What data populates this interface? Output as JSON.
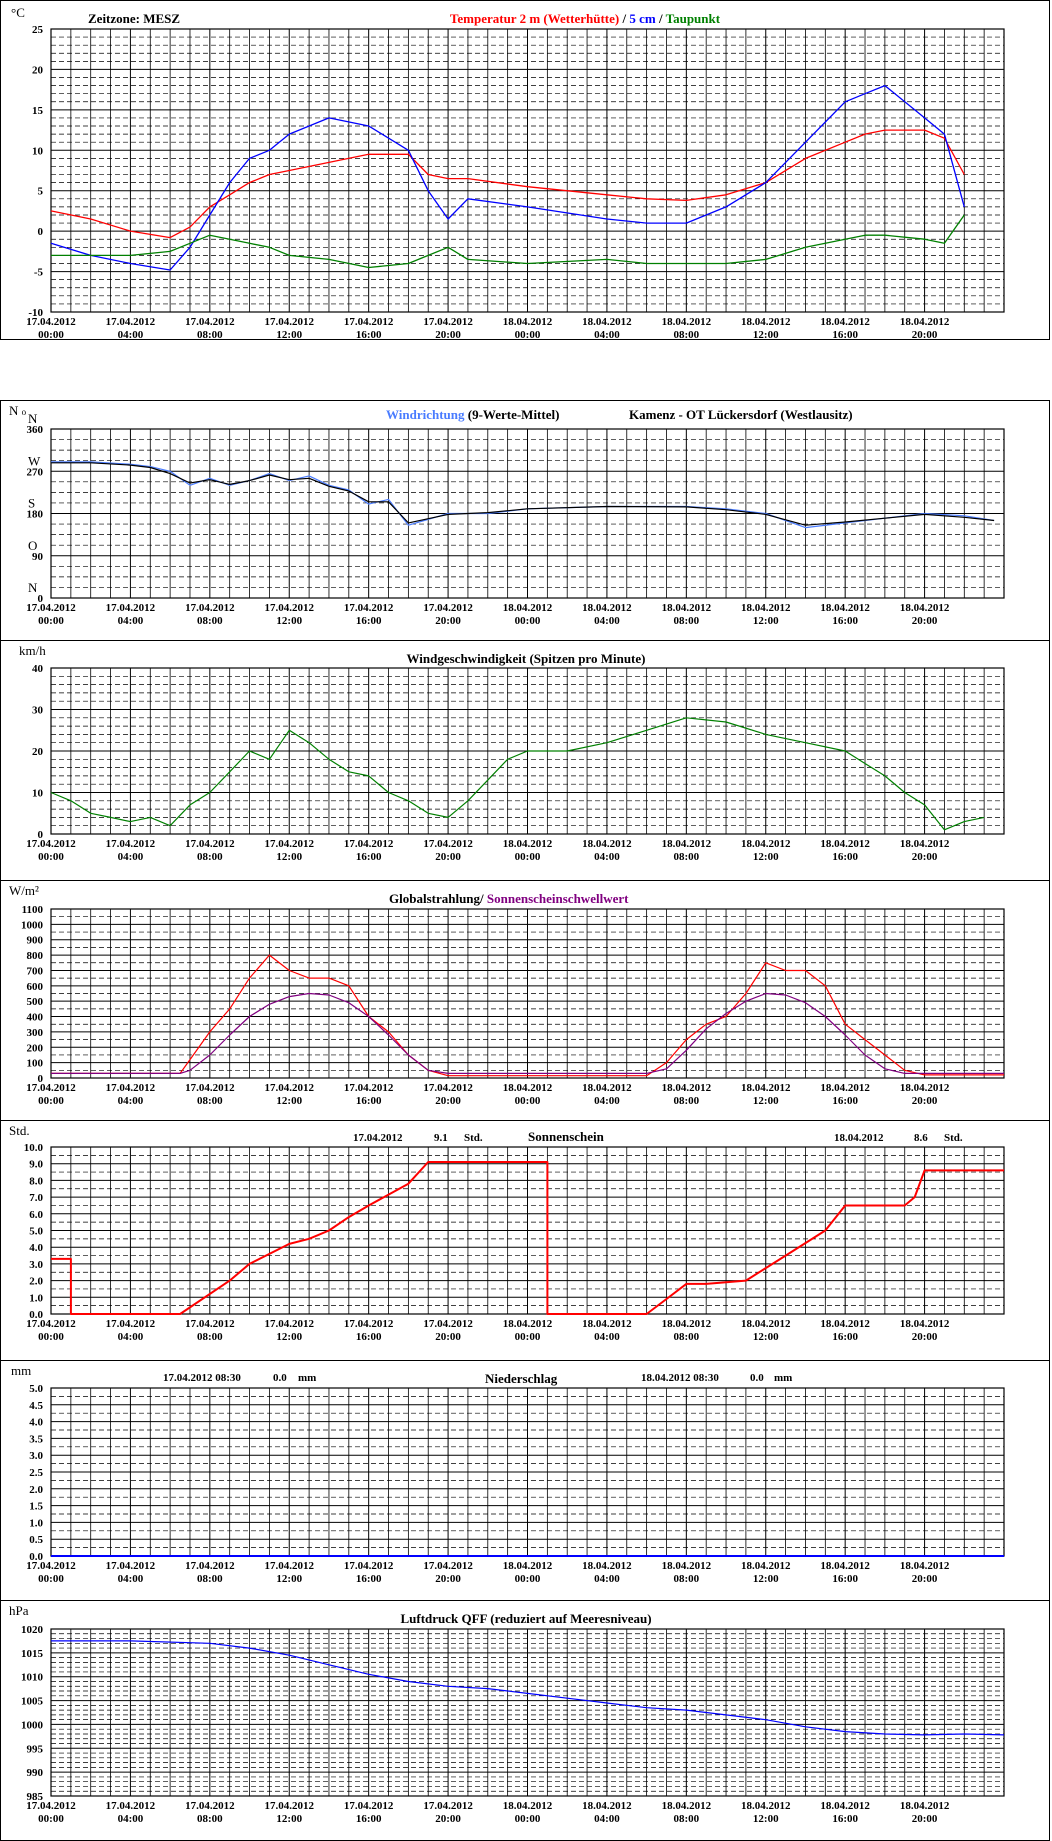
{
  "header": {
    "timezone_label": "Zeitzone: MESZ",
    "temp_title_red": "Temperatur 2 m (Wetterhütte)",
    "temp_sep1": " / ",
    "temp_title_blue": "5 cm",
    "temp_sep2": " / ",
    "temp_title_green": "Taupunkt",
    "wind_dir_blue": "Windrichtung",
    "wind_dir_black": " (9-Werte-Mittel)",
    "station": "Kamenz - OT Lückersdorf (Westlausitz)",
    "wind_speed_title": "Windgeschwindigkeit (Spitzen pro Minute)",
    "radiation_title_black": "Globalstrahlung/",
    "radiation_title_purple": " Sonnenscheinschwellwert",
    "sunshine_title": "Sonnenschein",
    "sunshine_day1": "17.04.2012",
    "sunshine_day1_val": "9.1",
    "sunshine_day1_unit": "Std.",
    "sunshine_day2": "18.04.2012",
    "sunshine_day2_val": "8.6",
    "sunshine_day2_unit": "Std.",
    "precip_title": "Niederschlag",
    "precip_day1": "17.04.2012 08:30",
    "precip_day1_val": "0.0",
    "precip_day1_unit": "mm",
    "precip_day2": "18.04.2012 08:30",
    "precip_day2_val": "0.0",
    "precip_day2_unit": "mm",
    "pressure_title": "Luftdruck QFF (reduziert auf Meeresniveau)"
  },
  "x_ticks": [
    {
      "date": "17.04.2012",
      "time": "00:00"
    },
    {
      "date": "17.04.2012",
      "time": "04:00"
    },
    {
      "date": "17.04.2012",
      "time": "08:00"
    },
    {
      "date": "17.04.2012",
      "time": "12:00"
    },
    {
      "date": "17.04.2012",
      "time": "16:00"
    },
    {
      "date": "17.04.2012",
      "time": "20:00"
    },
    {
      "date": "18.04.2012",
      "time": "00:00"
    },
    {
      "date": "18.04.2012",
      "time": "04:00"
    },
    {
      "date": "18.04.2012",
      "time": "08:00"
    },
    {
      "date": "18.04.2012",
      "time": "12:00"
    },
    {
      "date": "18.04.2012",
      "time": "16:00"
    },
    {
      "date": "18.04.2012",
      "time": "20:00"
    }
  ],
  "colors": {
    "temp2m": "#ff0000",
    "temp5cm": "#0000ff",
    "dewpoint": "#008000",
    "wind_dir_raw": "#4a7cff",
    "wind_dir_avg": "#000000",
    "wind_speed": "#008000",
    "radiation": "#ff0000",
    "sun_threshold": "#800080",
    "sunshine": "#ff0000",
    "precip": "#0000ff",
    "pressure": "#0000ff",
    "text_purple": "#800080"
  },
  "chart_data": [
    {
      "type": "line",
      "name": "temperature",
      "ylabel": "°C",
      "ylim": [
        -10,
        25
      ],
      "yticks": [
        "-10",
        "-5",
        "0",
        "5",
        "10",
        "15",
        "20",
        "25"
      ],
      "x_hours": [
        0,
        2,
        4,
        6,
        7,
        8,
        9,
        10,
        11,
        12,
        14,
        16,
        18,
        19,
        20,
        21,
        24,
        28,
        30,
        32,
        34,
        36,
        38,
        40,
        41,
        42,
        44,
        45,
        46
      ],
      "series": [
        {
          "name": "Temperatur 2 m (Wetterhütte)",
          "values": [
            2.5,
            1.5,
            0,
            -0.8,
            0.5,
            3,
            4.5,
            6,
            7,
            7.5,
            8.5,
            9.5,
            9.5,
            7,
            6.5,
            6.5,
            5.5,
            4.5,
            4,
            3.8,
            4.5,
            6,
            9,
            11,
            12,
            12.5,
            12.5,
            11.5,
            7
          ]
        },
        {
          "name": "5 cm",
          "values": [
            -1.5,
            -3,
            -4,
            -4.8,
            -2,
            2,
            6,
            9,
            10,
            12,
            14,
            13,
            10,
            5,
            1.5,
            4,
            3,
            1.5,
            1,
            1,
            3,
            6,
            11,
            16,
            17,
            18,
            14,
            12,
            3
          ]
        },
        {
          "name": "Taupunkt",
          "values": [
            -3,
            -3,
            -3,
            -2.5,
            -1.5,
            -0.5,
            -1,
            -1.5,
            -2,
            -3,
            -3.5,
            -4.5,
            -4,
            -3,
            -2,
            -3.5,
            -4,
            -3.5,
            -4,
            -4,
            -4,
            -3.5,
            -2,
            -1,
            -0.5,
            -0.5,
            -1,
            -1.5,
            2
          ]
        }
      ]
    },
    {
      "type": "line",
      "name": "wind_direction",
      "ylabel": "N",
      "ylim": [
        0,
        360
      ],
      "yticks": [
        "0",
        "90",
        "180",
        "270",
        "360"
      ],
      "compass_labels": [
        "N",
        "O",
        "S",
        "W",
        "N"
      ],
      "x_hours": [
        0,
        2,
        4,
        5,
        6,
        7,
        8,
        9,
        10,
        11,
        12,
        13,
        14,
        15,
        16,
        17,
        18,
        20,
        22,
        24,
        28,
        32,
        34,
        36,
        38,
        40,
        42,
        44,
        46,
        47.5
      ],
      "series": [
        {
          "name": "Windrichtung",
          "values": [
            290,
            290,
            285,
            280,
            270,
            240,
            255,
            240,
            250,
            265,
            250,
            260,
            240,
            230,
            200,
            210,
            155,
            180,
            180,
            190,
            195,
            195,
            190,
            180,
            150,
            160,
            170,
            180,
            175,
            165
          ]
        },
        {
          "name": "9-Werte-Mittel",
          "values": [
            288,
            288,
            283,
            278,
            265,
            245,
            252,
            242,
            250,
            262,
            252,
            255,
            238,
            228,
            205,
            205,
            160,
            178,
            182,
            190,
            195,
            194,
            188,
            178,
            155,
            162,
            170,
            178,
            172,
            165
          ]
        }
      ]
    },
    {
      "type": "line",
      "name": "wind_speed",
      "ylabel": "km/h",
      "ylim": [
        0,
        40
      ],
      "yticks": [
        "0",
        "10",
        "20",
        "30",
        "40"
      ],
      "x_hours": [
        0,
        1,
        2,
        3,
        4,
        5,
        6,
        7,
        8,
        9,
        10,
        11,
        12,
        13,
        14,
        15,
        16,
        17,
        18,
        19,
        20,
        21,
        22,
        23,
        24,
        26,
        28,
        30,
        32,
        34,
        36,
        38,
        40,
        41,
        42,
        43,
        44,
        45,
        46,
        47
      ],
      "series": [
        {
          "name": "Windgeschwindigkeit",
          "values": [
            10,
            8,
            5,
            4,
            3,
            4,
            2,
            7,
            10,
            15,
            20,
            18,
            25,
            22,
            18,
            15,
            14,
            10,
            8,
            5,
            4,
            8,
            13,
            18,
            20,
            20,
            22,
            25,
            28,
            27,
            24,
            22,
            20,
            17,
            14,
            10,
            7,
            1,
            3,
            4
          ]
        }
      ]
    },
    {
      "type": "line",
      "name": "radiation",
      "ylabel": "W/m²",
      "ylim": [
        0,
        1100
      ],
      "yticks": [
        "0",
        "100",
        "200",
        "300",
        "400",
        "500",
        "600",
        "700",
        "800",
        "900",
        "1000",
        "1100"
      ],
      "x_hours": [
        0,
        6,
        6.5,
        7,
        8,
        9,
        10,
        11,
        12,
        13,
        14,
        15,
        16,
        17,
        18,
        19,
        20,
        24,
        28,
        30,
        31,
        32,
        33,
        34,
        35,
        36,
        37,
        38,
        39,
        40,
        41,
        42,
        43,
        44,
        45,
        46,
        48
      ],
      "series": [
        {
          "name": "Globalstrahlung",
          "values": [
            30,
            30,
            30,
            120,
            300,
            450,
            650,
            800,
            700,
            650,
            650,
            600,
            400,
            300,
            150,
            50,
            15,
            15,
            15,
            15,
            100,
            250,
            350,
            400,
            550,
            750,
            700,
            700,
            600,
            350,
            250,
            150,
            50,
            20,
            20,
            20,
            20
          ]
        },
        {
          "name": "Sonnenscheinschwellwert",
          "values": [
            30,
            30,
            30,
            50,
            150,
            280,
            400,
            480,
            530,
            550,
            540,
            490,
            400,
            280,
            150,
            50,
            30,
            30,
            30,
            30,
            60,
            180,
            320,
            420,
            500,
            550,
            540,
            490,
            400,
            280,
            150,
            60,
            30,
            30,
            30,
            30,
            30
          ]
        }
      ]
    },
    {
      "type": "line",
      "name": "sunshine",
      "ylabel": "Std.",
      "ylim": [
        0,
        10
      ],
      "yticks": [
        "0.0",
        "1.0",
        "2.0",
        "3.0",
        "4.0",
        "5.0",
        "6.0",
        "7.0",
        "8.0",
        "9.0",
        "10.0"
      ],
      "x_hours": [
        0,
        1,
        1,
        6.5,
        9,
        10,
        11,
        12,
        13,
        14,
        15,
        16,
        18,
        19,
        20,
        24,
        25,
        25,
        30,
        31,
        32,
        33,
        35,
        37,
        39,
        40,
        41,
        43,
        43.5,
        44,
        48
      ],
      "series": [
        {
          "name": "Sonnenschein",
          "values": [
            3.3,
            3.3,
            0,
            0,
            2.0,
            3.0,
            3.6,
            4.2,
            4.5,
            5.0,
            5.8,
            6.5,
            7.8,
            9.1,
            9.1,
            9.1,
            9.1,
            0,
            0,
            0.9,
            1.8,
            1.8,
            2.0,
            3.5,
            5.0,
            6.5,
            6.5,
            6.5,
            7.0,
            8.6,
            8.6
          ]
        }
      ]
    },
    {
      "type": "line",
      "name": "precipitation",
      "ylabel": "mm",
      "ylim": [
        0,
        5
      ],
      "yticks": [
        "0.0",
        "0.5",
        "1.0",
        "1.5",
        "2.0",
        "2.5",
        "3.0",
        "3.5",
        "4.0",
        "4.5",
        "5.0"
      ],
      "x_hours": [
        0,
        48
      ],
      "series": [
        {
          "name": "Niederschlag",
          "values": [
            0,
            0
          ]
        }
      ]
    },
    {
      "type": "line",
      "name": "pressure",
      "ylabel": "hPa",
      "ylim": [
        985,
        1020
      ],
      "yticks": [
        "985",
        "990",
        "995",
        "1000",
        "1005",
        "1010",
        "1015",
        "1020"
      ],
      "x_hours": [
        0,
        4,
        8,
        10,
        12,
        14,
        16,
        18,
        20,
        22,
        24,
        26,
        28,
        30,
        32,
        34,
        36,
        38,
        40,
        42,
        44,
        46,
        48
      ],
      "series": [
        {
          "name": "Luftdruck QFF",
          "values": [
            1017.5,
            1017.5,
            1017,
            1016,
            1014.5,
            1012.5,
            1010.5,
            1009,
            1008,
            1007.5,
            1006.5,
            1005.5,
            1004.5,
            1003.5,
            1003,
            1002,
            1001,
            999.5,
            998.5,
            998,
            997.8,
            998,
            997.8
          ]
        }
      ]
    }
  ]
}
